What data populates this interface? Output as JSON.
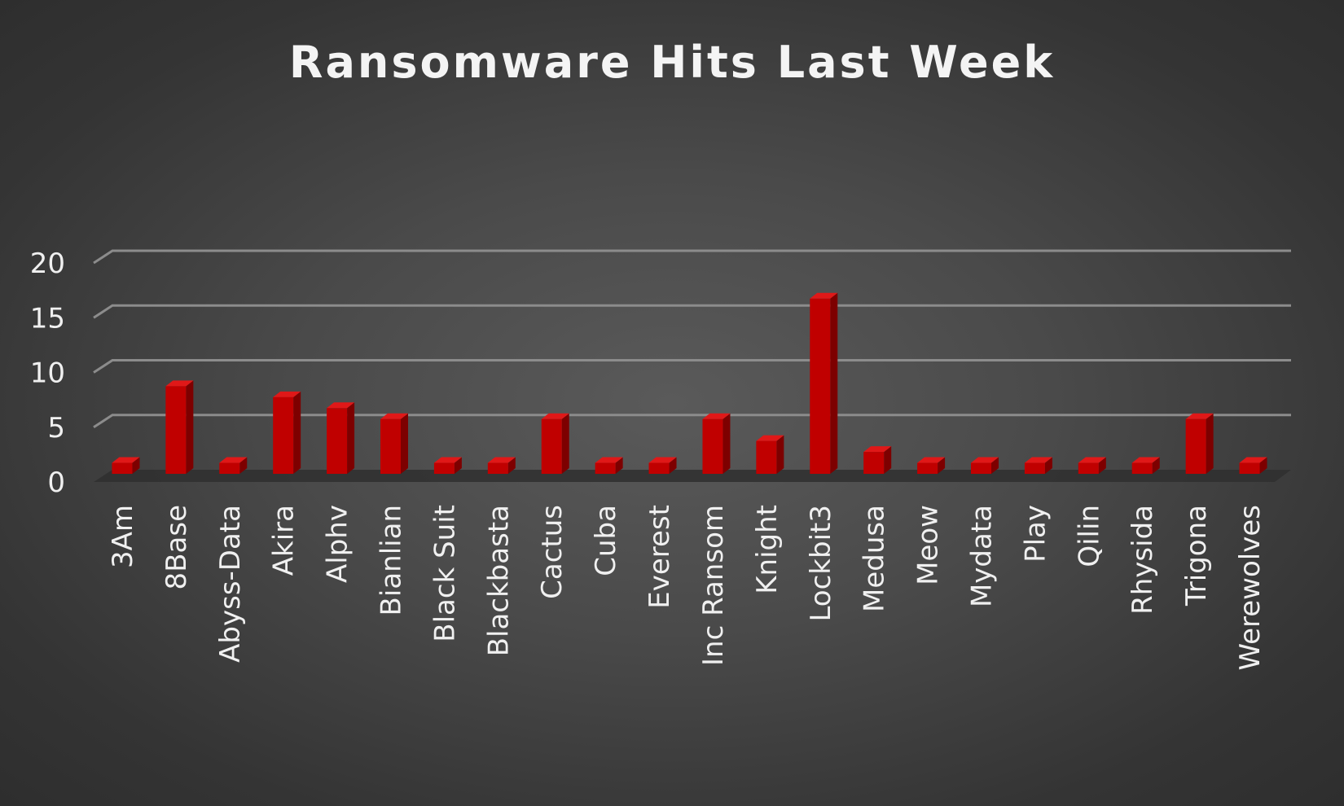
{
  "chart_data": {
    "type": "bar",
    "title": "Ransomware Hits Last Week",
    "xlabel": "",
    "ylabel": "",
    "ylim": [
      0,
      20
    ],
    "yticks": [
      "0",
      "5",
      "10",
      "15",
      "20"
    ],
    "categories": [
      "3Am",
      "8Base",
      "Abyss-Data",
      "Akira",
      "Alphv",
      "Bianlian",
      "Black Suit",
      "Blackbasta",
      "Cactus",
      "Cuba",
      "Everest",
      "Inc Ransom",
      "Knight",
      "Lockbit3",
      "Medusa",
      "Meow",
      "Mydata",
      "Play",
      "Qilin",
      "Rhysida",
      "Trigona",
      "Werewolves"
    ],
    "values": [
      1,
      8,
      1,
      7,
      6,
      5,
      1,
      1,
      5,
      1,
      1,
      5,
      3,
      16,
      2,
      1,
      1,
      1,
      1,
      1,
      5,
      1
    ],
    "grid": true,
    "legend": "none",
    "bar_color": "#c00000"
  }
}
